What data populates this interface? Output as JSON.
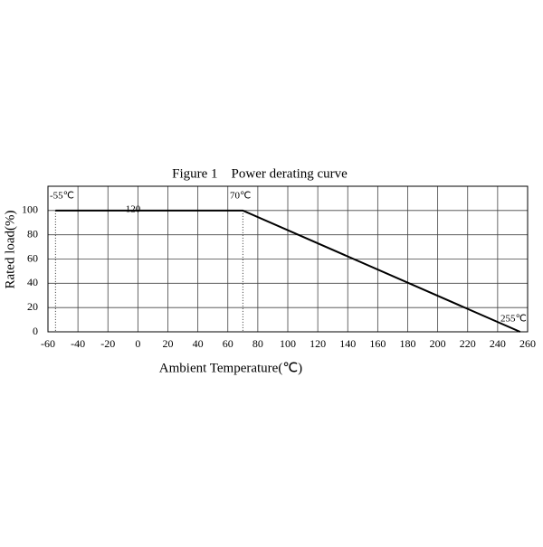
{
  "chart_data": {
    "type": "line",
    "title": "Figure 1    Power derating curve",
    "x_label": "Ambient Temperature(℃)",
    "y_label": "Rated load(%)",
    "x": [
      -55,
      70,
      255
    ],
    "series": [
      {
        "color": "#000000",
        "values": [
          100,
          100,
          0
        ]
      }
    ],
    "xlim": [
      -60,
      260
    ],
    "xticks": [
      -60,
      -40,
      -20,
      0,
      20,
      40,
      60,
      80,
      100,
      120,
      140,
      160,
      180,
      200,
      220,
      240,
      260
    ],
    "ylim": [
      0,
      120
    ],
    "yticks": [
      0,
      20,
      40,
      60,
      80,
      100
    ],
    "grid": true,
    "annotations": [
      "-55℃",
      "70℃",
      "255℃",
      "120"
    ]
  }
}
